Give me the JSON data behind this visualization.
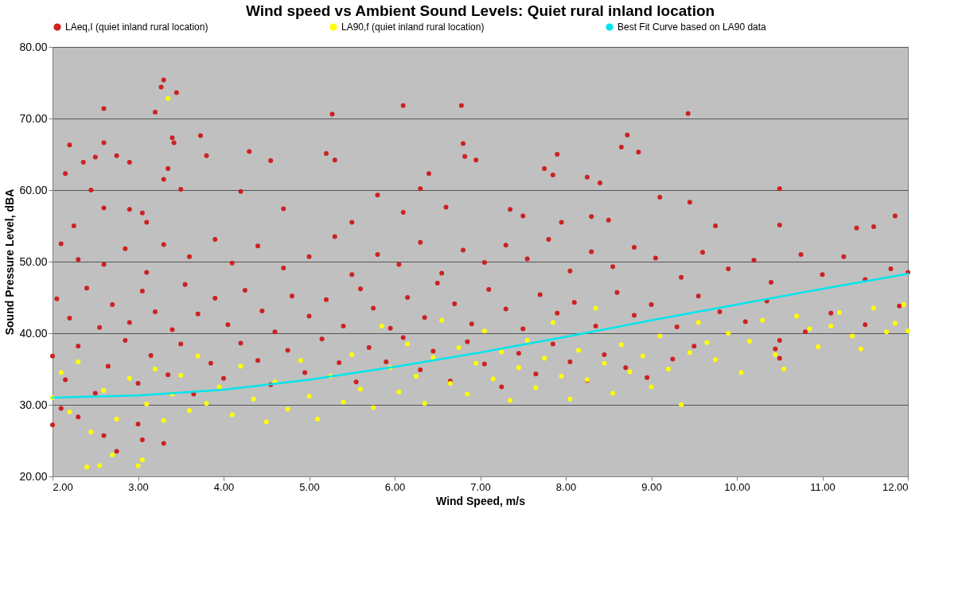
{
  "chart_data": {
    "type": "scatter",
    "title": "Wind speed vs Ambient Sound Levels: Quiet  rural inland location",
    "xlabel": "Wind Speed, m/s",
    "ylabel": "Sound Pressure Level, dBA",
    "xlim": [
      2,
      12
    ],
    "xticks": [
      {
        "value": 2,
        "label": "2.00"
      },
      {
        "value": 3,
        "label": "3.00"
      },
      {
        "value": 4,
        "label": "4.00"
      },
      {
        "value": 5,
        "label": "5.00"
      },
      {
        "value": 6,
        "label": "6.00"
      },
      {
        "value": 7,
        "label": "7.00"
      },
      {
        "value": 8,
        "label": "8.00"
      },
      {
        "value": 9,
        "label": "9.00"
      },
      {
        "value": 10,
        "label": "10.00"
      },
      {
        "value": 11,
        "label": "11.00"
      },
      {
        "value": 12,
        "label": "12.00"
      }
    ],
    "ylim": [
      20,
      80
    ],
    "yticks": [
      {
        "value": 20,
        "label": "20.00"
      },
      {
        "value": 30,
        "label": "30.00"
      },
      {
        "value": 40,
        "label": "40.00"
      },
      {
        "value": 50,
        "label": "50.00"
      },
      {
        "value": 60,
        "label": "60.00"
      },
      {
        "value": 70,
        "label": "70.00"
      },
      {
        "value": 80,
        "label": "80.00"
      }
    ],
    "grid": "y",
    "legend": "top",
    "marker": "circle",
    "series": [
      {
        "name": "LAeq,I (quiet inland rural location)",
        "color": "#cc2222",
        "x": [
          2.6,
          3.2,
          3.27,
          3.3,
          3.45,
          5.27,
          6.1,
          6.78,
          9.43,
          2.2,
          2.6,
          3.4,
          3.42,
          3.73,
          2.36,
          2.5,
          2.75,
          2.9,
          3.35,
          3.8,
          4.3,
          4.55,
          5.2,
          5.3,
          6.4,
          6.8,
          6.82,
          6.95,
          8.65,
          8.72,
          8.85,
          7.9,
          7.85,
          8.25,
          8.4,
          7.75,
          10.5,
          2.15,
          3.3,
          3.5,
          2.45,
          3.1,
          3.05,
          4.2,
          5.8,
          6.3,
          2.25,
          2.6,
          2.9,
          4.7,
          5.5,
          6.1,
          6.6,
          7.35,
          7.5,
          7.95,
          8.3,
          8.5,
          9.1,
          9.45,
          11.85,
          11.4,
          11.6,
          10.5,
          9.75,
          2.1,
          2.3,
          2.6,
          2.85,
          3.1,
          3.3,
          3.6,
          3.9,
          4.1,
          4.4,
          4.7,
          5.0,
          5.3,
          5.5,
          5.8,
          6.05,
          6.3,
          6.55,
          6.8,
          7.05,
          7.3,
          7.55,
          7.8,
          8.05,
          8.3,
          8.55,
          8.8,
          9.05,
          9.35,
          9.6,
          9.9,
          10.2,
          10.4,
          10.75,
          11.0,
          11.25,
          11.5,
          11.8,
          12.0,
          2.05,
          2.2,
          2.4,
          2.55,
          2.7,
          2.9,
          3.05,
          3.2,
          3.4,
          3.55,
          3.7,
          3.9,
          4.05,
          4.25,
          4.45,
          4.6,
          4.8,
          5.0,
          5.2,
          5.4,
          5.6,
          5.75,
          5.95,
          6.15,
          6.35,
          6.5,
          6.7,
          6.9,
          7.1,
          7.3,
          7.5,
          7.7,
          7.9,
          8.1,
          8.35,
          8.6,
          8.8,
          9.0,
          9.3,
          9.55,
          9.8,
          10.1,
          10.35,
          10.5,
          10.8,
          11.1,
          11.5,
          11.9,
          2.0,
          2.15,
          2.3,
          2.5,
          2.65,
          2.85,
          3.0,
          3.15,
          3.35,
          3.5,
          3.65,
          3.85,
          4.0,
          4.2,
          4.4,
          4.55,
          4.75,
          4.95,
          5.15,
          5.35,
          5.55,
          5.7,
          5.9,
          6.1,
          6.3,
          6.45,
          6.65,
          6.85,
          7.05,
          7.25,
          7.45,
          7.65,
          7.85,
          8.05,
          8.25,
          8.45,
          8.7,
          8.95,
          9.25,
          9.5,
          10.45,
          10.5,
          2.0,
          2.3,
          2.6,
          2.75,
          3.0,
          3.05,
          3.3,
          2.1
        ],
        "values": [
          71.4,
          70.9,
          74.4,
          75.4,
          73.6,
          70.6,
          71.8,
          71.8,
          70.7,
          66.3,
          66.6,
          67.3,
          66.6,
          67.6,
          63.9,
          64.6,
          64.8,
          63.9,
          63.0,
          64.8,
          65.4,
          64.1,
          65.1,
          64.2,
          62.3,
          66.5,
          64.7,
          64.2,
          66.0,
          67.7,
          65.3,
          65.0,
          62.1,
          61.8,
          61.0,
          63.0,
          60.2,
          62.3,
          61.5,
          60.1,
          60.0,
          55.5,
          56.8,
          59.8,
          59.3,
          60.2,
          55.0,
          57.5,
          57.3,
          57.4,
          55.5,
          56.9,
          57.6,
          57.3,
          56.4,
          55.5,
          56.3,
          55.8,
          59.0,
          58.3,
          56.4,
          54.7,
          54.9,
          55.1,
          55.0,
          52.5,
          50.3,
          49.6,
          51.8,
          48.5,
          52.4,
          50.7,
          53.1,
          49.8,
          52.2,
          49.1,
          50.7,
          53.5,
          48.2,
          51.0,
          49.6,
          52.7,
          48.4,
          51.6,
          49.9,
          52.3,
          50.4,
          53.1,
          48.7,
          51.4,
          49.3,
          52.0,
          50.5,
          47.8,
          51.3,
          49.0,
          50.2,
          47.1,
          51.0,
          48.2,
          50.7,
          47.5,
          49.0,
          48.5,
          44.8,
          42.1,
          46.3,
          40.8,
          44.0,
          41.5,
          45.9,
          43.0,
          40.5,
          46.8,
          42.7,
          44.9,
          41.2,
          46.0,
          43.1,
          40.2,
          45.2,
          42.4,
          44.7,
          41.0,
          46.2,
          43.5,
          40.7,
          45.0,
          42.2,
          47.0,
          44.1,
          41.3,
          46.1,
          43.4,
          40.6,
          45.4,
          42.8,
          44.3,
          41.0,
          45.7,
          42.5,
          44.0,
          40.9,
          45.2,
          43.0,
          41.6,
          44.5,
          39.0,
          40.2,
          42.8,
          41.2,
          43.8,
          36.8,
          33.5,
          38.2,
          31.6,
          35.4,
          39.0,
          33.0,
          36.9,
          34.2,
          38.5,
          31.5,
          35.8,
          33.7,
          38.6,
          36.2,
          32.8,
          37.6,
          34.5,
          39.2,
          35.9,
          33.2,
          38.0,
          36.0,
          39.4,
          34.9,
          37.5,
          33.3,
          38.8,
          35.7,
          32.5,
          37.2,
          34.3,
          38.5,
          36.0,
          33.4,
          37.0,
          35.2,
          33.8,
          36.4,
          38.2,
          37.8,
          36.5,
          27.2,
          28.3,
          25.7,
          23.5,
          27.3,
          25.1,
          24.6,
          29.5
        ]
      },
      {
        "name": "LA90,f (quiet inland rural location)",
        "color": "#ffff00",
        "x": [
          2.0,
          2.1,
          2.2,
          2.3,
          2.4,
          2.45,
          2.55,
          2.6,
          2.7,
          2.75,
          2.9,
          3.0,
          3.05,
          3.1,
          3.2,
          3.3,
          3.35,
          3.4,
          3.5,
          3.6,
          3.7,
          3.8,
          3.95,
          4.1,
          4.2,
          4.35,
          4.5,
          4.6,
          4.75,
          4.9,
          5.0,
          5.1,
          5.25,
          5.4,
          5.5,
          5.6,
          5.75,
          5.85,
          5.95,
          6.05,
          6.15,
          6.25,
          6.35,
          6.45,
          6.55,
          6.65,
          6.75,
          6.85,
          6.95,
          7.05,
          7.15,
          7.25,
          7.35,
          7.45,
          7.55,
          7.65,
          7.75,
          7.85,
          7.95,
          8.05,
          8.15,
          8.25,
          8.35,
          8.45,
          8.55,
          8.65,
          8.75,
          8.9,
          9.0,
          9.1,
          9.2,
          9.35,
          9.45,
          9.55,
          9.65,
          9.75,
          9.9,
          10.05,
          10.15,
          10.3,
          10.45,
          10.55,
          10.7,
          10.85,
          10.95,
          11.1,
          11.2,
          11.35,
          11.45,
          11.6,
          11.75,
          11.85,
          11.95,
          12.0
        ],
        "values": [
          31.0,
          34.5,
          29.0,
          36.0,
          21.3,
          26.2,
          21.5,
          32.0,
          23.0,
          28.0,
          33.7,
          21.5,
          22.3,
          30.1,
          35.0,
          27.8,
          72.8,
          31.5,
          34.1,
          29.2,
          36.8,
          30.2,
          32.5,
          28.6,
          35.4,
          30.8,
          27.6,
          33.2,
          29.4,
          36.2,
          31.2,
          28.0,
          34.0,
          30.4,
          37.0,
          32.2,
          29.6,
          41.0,
          35.2,
          31.8,
          38.5,
          34.0,
          30.2,
          36.6,
          41.8,
          33.0,
          38.0,
          31.5,
          35.8,
          40.3,
          33.6,
          37.4,
          30.6,
          35.2,
          39.0,
          32.4,
          36.5,
          41.5,
          34.0,
          30.8,
          37.6,
          33.5,
          43.5,
          35.8,
          31.6,
          38.4,
          34.6,
          36.8,
          32.5,
          39.6,
          35.0,
          30.0,
          37.3,
          41.5,
          38.7,
          36.3,
          40.0,
          34.5,
          38.9,
          41.8,
          37.0,
          35.0,
          42.4,
          40.6,
          38.1,
          41.0,
          42.9,
          39.6,
          37.8,
          43.5,
          40.2,
          41.4,
          44.0,
          40.3
        ]
      },
      {
        "name": "Best Fit Curve based on LA90 data",
        "type": "line",
        "color": "#00e5ee",
        "marker": "none",
        "line_style": "solid",
        "x": [
          2,
          3,
          4,
          5,
          6,
          7,
          8,
          9,
          10,
          11,
          12
        ],
        "values": [
          31.0,
          31.3,
          32.1,
          33.5,
          35.3,
          37.3,
          39.5,
          41.8,
          44.0,
          46.2,
          48.3
        ]
      }
    ]
  }
}
